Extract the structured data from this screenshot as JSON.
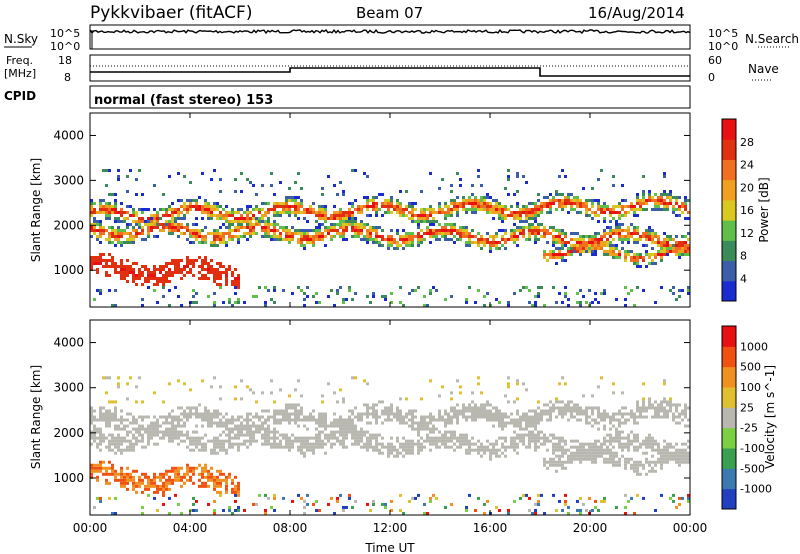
{
  "header": {
    "station": "Pykkvibaer (fitACF)",
    "beam": "Beam 07",
    "date": "16/Aug/2014"
  },
  "noise_panel": {
    "left_label": "N.Sky",
    "right_label": "N.Search",
    "left_ticks": [
      "10^5",
      "10^0"
    ],
    "right_ticks": [
      "10^5",
      "10^0"
    ]
  },
  "freq_panel": {
    "left_label_1": "Freq.",
    "left_label_2": "[MHz]",
    "left_ticks": [
      "18",
      "8"
    ],
    "right_label": "Nave",
    "right_ticks": [
      "60",
      "0"
    ]
  },
  "cpid_panel": {
    "label": "CPID",
    "mode_text": "normal (fast stereo) 153"
  },
  "power_panel": {
    "ylabel": "Slant Range [km]",
    "yticks": [
      "1000",
      "2000",
      "3000",
      "4000"
    ],
    "colorbar_label": "Power [dB]",
    "colorbar_ticks": [
      "4",
      "8",
      "12",
      "16",
      "20",
      "24",
      "28"
    ],
    "colors": [
      "#1a2ccf",
      "#3a5fa8",
      "#3a8a5a",
      "#5fbf4a",
      "#d9c820",
      "#f0a020",
      "#f07020",
      "#e03010",
      "#e81010"
    ]
  },
  "velocity_panel": {
    "ylabel": "Slant Range [km]",
    "yticks": [
      "1000",
      "2000",
      "3000",
      "4000"
    ],
    "colorbar_label": "Velocity [m s^-1]",
    "colorbar_ticks": [
      "1000",
      "500",
      "100",
      "25",
      "-25",
      "-100",
      "-500",
      "-1000"
    ],
    "colors": [
      "#2040c0",
      "#3a7ab0",
      "#3aa050",
      "#7ad040",
      "#b8b8b0",
      "#e0c030",
      "#f09020",
      "#f05010",
      "#e81010"
    ]
  },
  "xaxis": {
    "label": "Time UT",
    "ticks": [
      "00:00",
      "04:00",
      "08:00",
      "12:00",
      "16:00",
      "20:00",
      "00:00"
    ]
  },
  "chart_data": {
    "type": "heatmap",
    "title": "Pykkvibaer (fitACF) Beam 07 16/Aug/2014",
    "xlabel": "Time UT",
    "ylabel": "Slant Range [km]",
    "xlim": [
      "00:00",
      "24:00"
    ],
    "ylim": [
      180,
      4500
    ],
    "power_clim_dB": [
      0,
      30
    ],
    "velocity_clim_ms": [
      -1000,
      1000
    ],
    "frequency_mhz": {
      "00:00-08:00": 10,
      "08:00-18:00": 12,
      "18:00-24:00": 10
    },
    "nave_approx": 20,
    "noise_sky_approx": "10^4",
    "scatter_bands": [
      {
        "name": "band_a",
        "start_km": 1850,
        "end_km": 1650,
        "start_hr": 0,
        "end_hr": 24
      },
      {
        "name": "band_b",
        "start_km": 2200,
        "end_km": 2400,
        "start_hr": 0,
        "end_hr": 24
      },
      {
        "name": "near_range_strong",
        "start_km": 1000,
        "end_km": 900,
        "start_hr": 0,
        "end_hr": 6
      },
      {
        "name": "evening",
        "start_km": 1400,
        "end_km": 1300,
        "start_hr": 18,
        "end_hr": 24
      }
    ]
  }
}
